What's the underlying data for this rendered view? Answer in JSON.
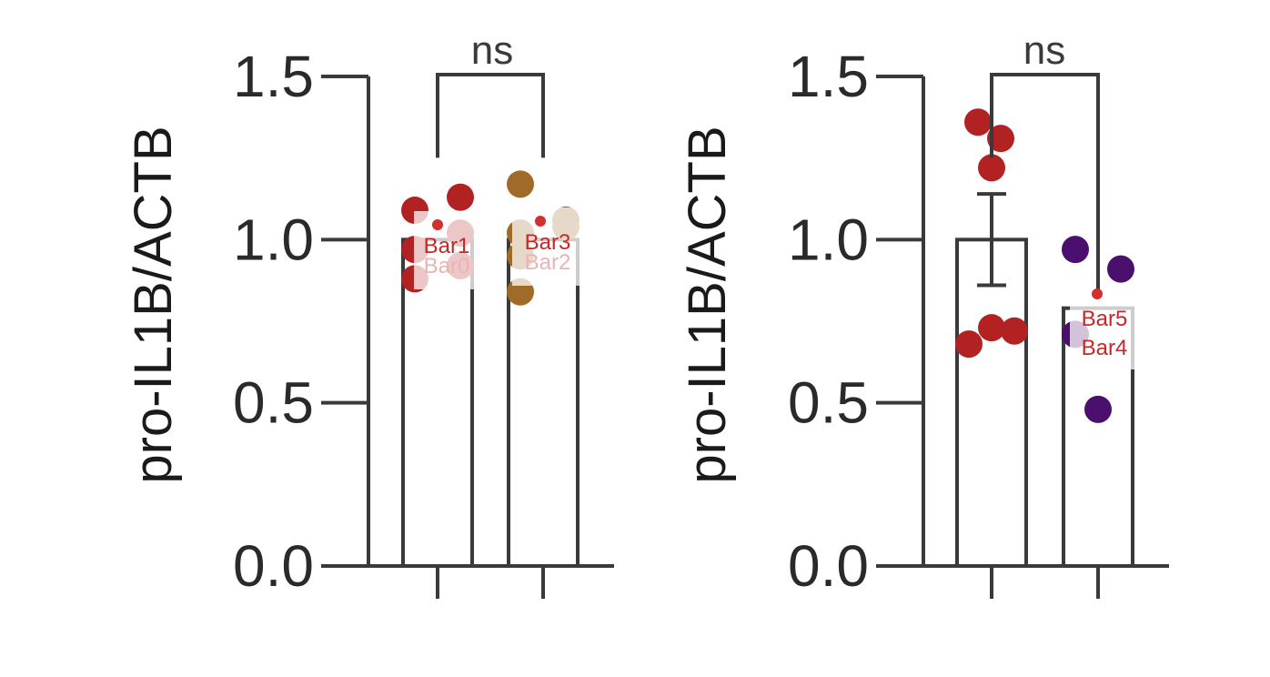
{
  "chart_data": [
    {
      "type": "bar",
      "ylabel": "pro-IL1B/ACTB",
      "ylim": [
        0,
        1.5
      ],
      "yticks": [
        "0.0",
        "0.5",
        "1.0",
        "1.5"
      ],
      "significance": "ns",
      "bars": [
        {
          "label": "Bar0",
          "value": 1.0,
          "color": "#b22222",
          "points": [
            1.09,
            0.97,
            0.88,
            1.13,
            1.02,
            0.92
          ]
        },
        {
          "label": "Bar2",
          "value": 1.0,
          "color": "#a06a28",
          "points": [
            1.17,
            1.02,
            0.95,
            0.84,
            1.04,
            1.06
          ]
        }
      ],
      "annotations": [
        {
          "label": "Bar1",
          "value": 1.05
        },
        {
          "label": "Bar3",
          "value": 1.06
        }
      ]
    },
    {
      "type": "bar",
      "ylabel": "pro-IL1B/ACTB",
      "ylim": [
        0,
        1.5
      ],
      "yticks": [
        "0.0",
        "0.5",
        "1.0",
        "1.5"
      ],
      "significance": "ns",
      "bars": [
        {
          "label": "",
          "value": 1.0,
          "error": 0.14,
          "color": "#b22222",
          "points": [
            1.36,
            1.31,
            1.22,
            0.68,
            0.73,
            0.72
          ]
        },
        {
          "label": "Bar4",
          "value": 0.79,
          "color": "#4b0f6e",
          "points": [
            0.97,
            0.91,
            0.71,
            0.48
          ]
        }
      ],
      "annotations": [
        {
          "label": "Bar5",
          "value": 0.83
        }
      ]
    }
  ]
}
